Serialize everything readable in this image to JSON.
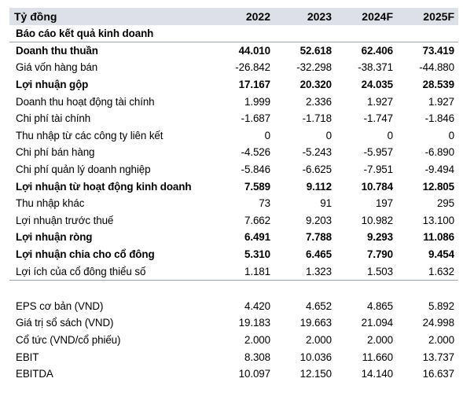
{
  "header": {
    "label": "Tỷ đồng",
    "years": [
      "2022",
      "2023",
      "2024F",
      "2025F"
    ]
  },
  "section1": {
    "title": "Báo cáo kết quả kinh doanh",
    "rows": [
      {
        "label": "Doanh thu thuần",
        "values": [
          "44.010",
          "52.618",
          "62.406",
          "73.419"
        ],
        "bold": true
      },
      {
        "label": "Giá vốn hàng bán",
        "values": [
          "-26.842",
          "-32.298",
          "-38.371",
          "-44.880"
        ],
        "bold": false
      },
      {
        "label": "Lợi nhuận gộp",
        "values": [
          "17.167",
          "20.320",
          "24.035",
          "28.539"
        ],
        "bold": true
      },
      {
        "label": "Doanh thu hoạt động tài chính",
        "values": [
          "1.999",
          "2.336",
          "1.927",
          "1.927"
        ],
        "bold": false
      },
      {
        "label": "Chi phí tài chính",
        "values": [
          "-1.687",
          "-1.718",
          "-1.747",
          "-1.846"
        ],
        "bold": false
      },
      {
        "label": "Thu nhập từ các công ty liên kết",
        "values": [
          "0",
          "0",
          "0",
          "0"
        ],
        "bold": false
      },
      {
        "label": "Chi phí bán hàng",
        "values": [
          "-4.526",
          "-5.243",
          "-5.957",
          "-6.890"
        ],
        "bold": false
      },
      {
        "label": "Chi phí quản lý doanh nghiệp",
        "values": [
          "-5.846",
          "-6.625",
          "-7.951",
          "-9.494"
        ],
        "bold": false
      },
      {
        "label": "Lợi nhuận từ hoạt động kinh doanh",
        "values": [
          "7.589",
          "9.112",
          "10.784",
          "12.805"
        ],
        "bold": true
      },
      {
        "label": "Thu nhập khác",
        "values": [
          "73",
          "91",
          "197",
          "295"
        ],
        "bold": false
      },
      {
        "label": "Lợi nhuận trước thuế",
        "values": [
          "7.662",
          "9.203",
          "10.982",
          "13.100"
        ],
        "bold": false
      },
      {
        "label": "Lợi nhuận ròng",
        "values": [
          "6.491",
          "7.788",
          "9.293",
          "11.086"
        ],
        "bold": true
      },
      {
        "label": "Lợi nhuận chia cho cổ đông",
        "values": [
          "5.310",
          "6.465",
          "7.790",
          "9.454"
        ],
        "bold": true
      },
      {
        "label": "Lợi ích của cổ đông thiểu số",
        "values": [
          "1.181",
          "1.323",
          "1.503",
          "1.632"
        ],
        "bold": false
      }
    ]
  },
  "section2": {
    "rows": [
      {
        "label": "EPS cơ bản (VND)",
        "values": [
          "4.420",
          "4.652",
          "4.865",
          "5.892"
        ],
        "bold": false
      },
      {
        "label": "Giá trị sổ sách (VND)",
        "values": [
          "19.183",
          "19.663",
          "21.094",
          "24.998"
        ],
        "bold": false
      },
      {
        "label": "Cổ tức (VND/cổ phiếu)",
        "values": [
          "2.000",
          "2.000",
          "2.000",
          "2.000"
        ],
        "bold": false
      },
      {
        "label": "EBIT",
        "values": [
          "8.308",
          "10.036",
          "11.660",
          "13.737"
        ],
        "bold": false
      },
      {
        "label": "EBITDA",
        "values": [
          "10.097",
          "12.150",
          "14.140",
          "16.637"
        ],
        "bold": false
      }
    ]
  }
}
